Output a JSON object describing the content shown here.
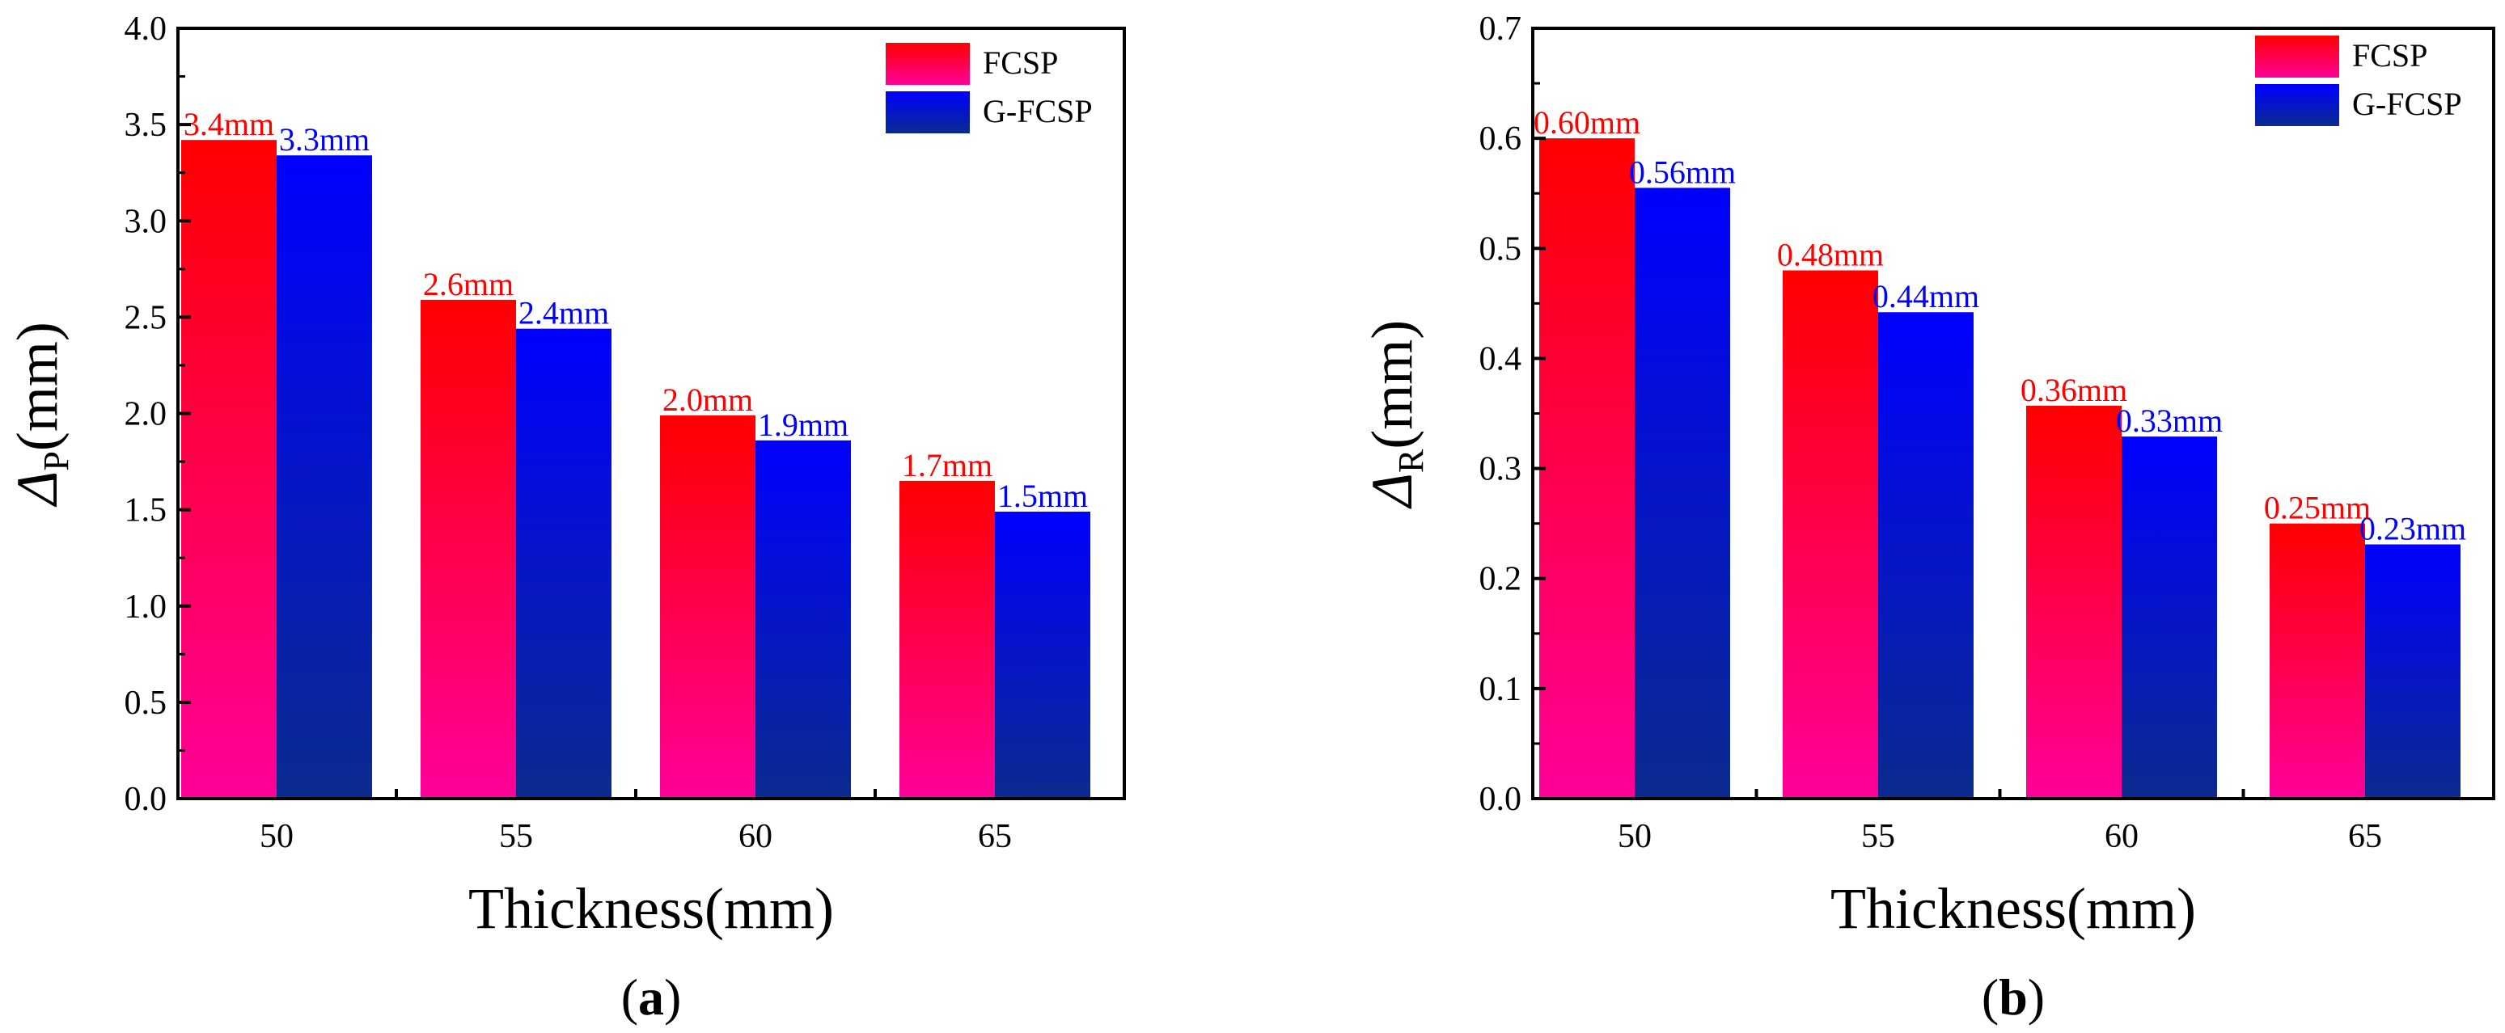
{
  "colors": {
    "fcsp_top": "#ff0000",
    "fcsp_bottom": "#ff0099",
    "gfcsp_top": "#0000ff",
    "gfcsp_bottom": "#0a2b8e",
    "fcsp_label": "#ff0000",
    "gfcsp_label": "#0000ff",
    "axis": "#000000"
  },
  "chart_data": [
    {
      "type": "bar",
      "panel_label_open": "(",
      "panel_label_letter": "a",
      "panel_label_close": ")",
      "categories": [
        "50",
        "55",
        "60",
        "65"
      ],
      "series": [
        {
          "name": "FCSP",
          "values": [
            3.42,
            2.59,
            1.99,
            1.65
          ],
          "labels": [
            "3.4mm",
            "2.6mm",
            "2.0mm",
            "1.7mm"
          ]
        },
        {
          "name": "G-FCSP",
          "values": [
            3.34,
            2.44,
            1.86,
            1.49
          ],
          "labels": [
            "3.3mm",
            "2.4mm",
            "1.9mm",
            "1.5mm"
          ]
        }
      ],
      "xlabel": "Thickness(mm)",
      "ylabel_symbol": "Δ",
      "ylabel_sub": "P",
      "ylabel_unit": "(mm)",
      "ylim": [
        0,
        4.0
      ],
      "yticks": [
        "0.0",
        "0.5",
        "1.0",
        "1.5",
        "2.0",
        "2.5",
        "3.0",
        "3.5",
        "4.0"
      ],
      "grid": false,
      "legend_position": "top-right"
    },
    {
      "type": "bar",
      "panel_label_open": "(",
      "panel_label_letter": "b",
      "panel_label_close": ")",
      "categories": [
        "50",
        "55",
        "60",
        "65"
      ],
      "series": [
        {
          "name": "FCSP",
          "values": [
            0.6,
            0.48,
            0.357,
            0.25
          ],
          "labels": [
            "0.60mm",
            "0.48mm",
            "0.36mm",
            "0.25mm"
          ]
        },
        {
          "name": "G-FCSP",
          "values": [
            0.555,
            0.442,
            0.329,
            0.231
          ],
          "labels": [
            "0.56mm",
            "0.44mm",
            "0.33mm",
            "0.23mm"
          ]
        }
      ],
      "xlabel": "Thickness(mm)",
      "ylabel_symbol": "Δ",
      "ylabel_sub": "R",
      "ylabel_unit": "(mm)",
      "ylim": [
        0,
        0.7
      ],
      "yticks": [
        "0.0",
        "0.1",
        "0.2",
        "0.3",
        "0.4",
        "0.5",
        "0.6",
        "0.7"
      ],
      "grid": false,
      "legend_position": "top-right"
    }
  ]
}
